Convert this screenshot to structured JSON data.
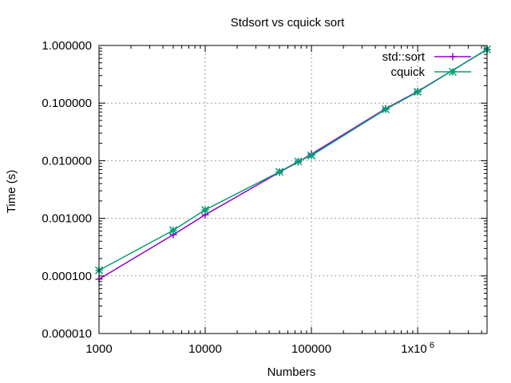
{
  "chart_data": {
    "type": "line",
    "title": "Stdsort vs cquick sort",
    "xlabel": "Numbers",
    "ylabel": "Time (s)",
    "x_scale": "log",
    "y_scale": "log",
    "xlim": [
      1000,
      4500000
    ],
    "ylim": [
      1e-05,
      1.0
    ],
    "grid": true,
    "legend_position": "top-right",
    "x_ticks": [
      {
        "value": 1000,
        "label": "1000"
      },
      {
        "value": 10000,
        "label": "10000"
      },
      {
        "value": 100000,
        "label": "100000"
      },
      {
        "value": 1000000,
        "label": "1x10",
        "exp": "6"
      }
    ],
    "y_ticks": [
      {
        "value": 1e-05,
        "label": "0.000010"
      },
      {
        "value": 0.0001,
        "label": "0.000100"
      },
      {
        "value": 0.001,
        "label": "0.001000"
      },
      {
        "value": 0.01,
        "label": "0.010000"
      },
      {
        "value": 0.1,
        "label": "0.100000"
      },
      {
        "value": 1.0,
        "label": "1.000000"
      }
    ],
    "series": [
      {
        "name": "std::sort",
        "color": "#9400d3",
        "marker": "plus",
        "x": [
          1000,
          5000,
          10000,
          50000,
          75000,
          100000,
          500000,
          1000000,
          4500000
        ],
        "y": [
          8.8e-05,
          0.00052,
          0.00115,
          0.0063,
          0.0095,
          0.013,
          0.08,
          0.16,
          0.85
        ]
      },
      {
        "name": "cquick",
        "color": "#009e73",
        "marker": "star",
        "x": [
          1000,
          5000,
          10000,
          50000,
          75000,
          100000,
          500000,
          1000000,
          4500000
        ],
        "y": [
          0.000125,
          0.00062,
          0.0014,
          0.0064,
          0.0097,
          0.0123,
          0.078,
          0.157,
          0.86
        ]
      }
    ]
  }
}
